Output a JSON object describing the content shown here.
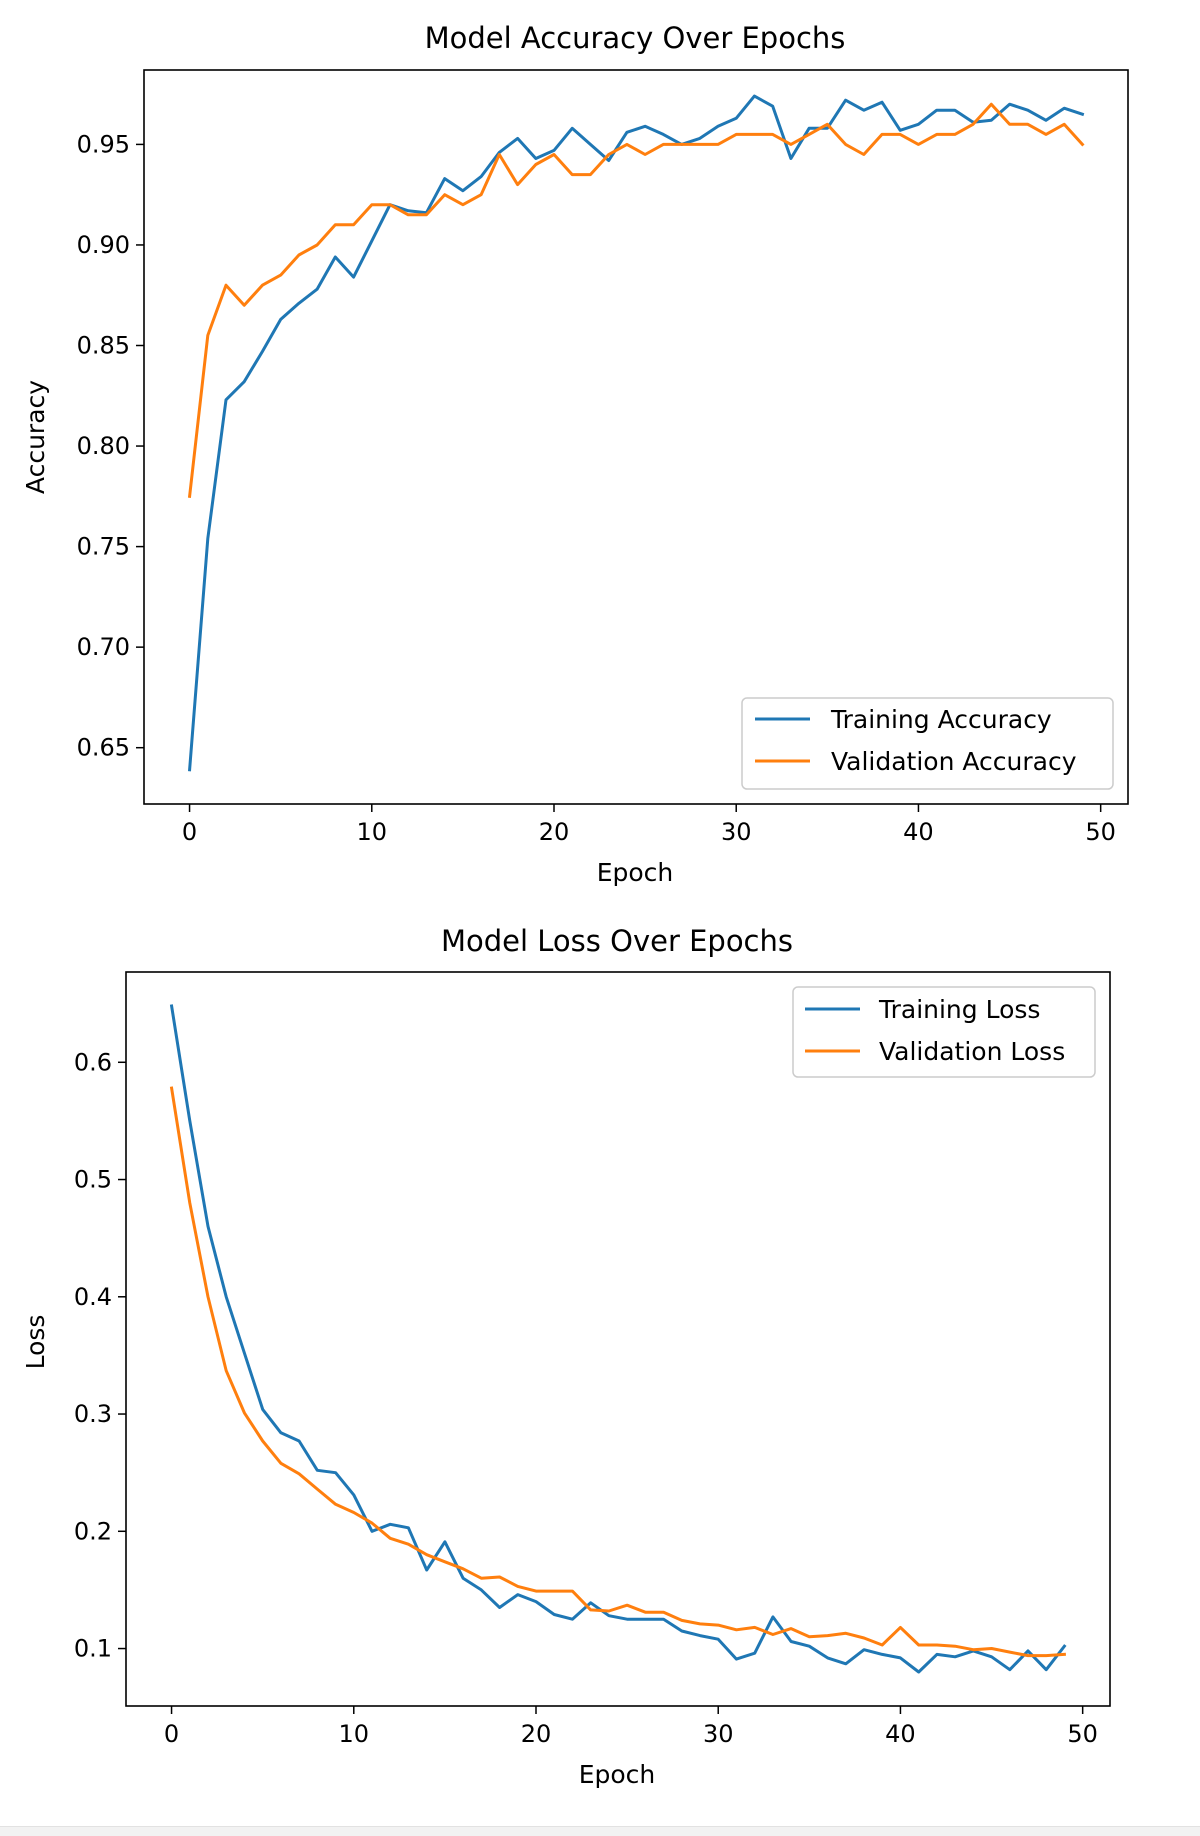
{
  "colors": {
    "training": "#1f77b4",
    "validation": "#ff7f0e"
  },
  "chart_data": [
    {
      "type": "line",
      "title": "Model Accuracy Over Epochs",
      "xlabel": "Epoch",
      "ylabel": "Accuracy",
      "xlim": [
        -2.5,
        51.5
      ],
      "ylim": [
        0.622,
        0.987
      ],
      "xticks": [
        0,
        10,
        20,
        30,
        40,
        50
      ],
      "xtick_labels": [
        "0",
        "10",
        "20",
        "30",
        "40",
        "50"
      ],
      "yticks": [
        0.65,
        0.7,
        0.75,
        0.8,
        0.85,
        0.9,
        0.95
      ],
      "ytick_labels": [
        "0.65",
        "0.70",
        "0.75",
        "0.80",
        "0.85",
        "0.90",
        "0.95"
      ],
      "legend_position": "lower-right",
      "grid": false,
      "series": [
        {
          "name": "Training Accuracy",
          "values": [
            0.639,
            0.754,
            0.823,
            0.832,
            0.847,
            0.863,
            0.871,
            0.878,
            0.894,
            0.884,
            0.902,
            0.92,
            0.917,
            0.916,
            0.933,
            0.927,
            0.934,
            0.946,
            0.953,
            0.943,
            0.947,
            0.958,
            0.95,
            0.942,
            0.956,
            0.959,
            0.955,
            0.95,
            0.953,
            0.959,
            0.963,
            0.974,
            0.969,
            0.943,
            0.958,
            0.958,
            0.972,
            0.967,
            0.971,
            0.957,
            0.96,
            0.967,
            0.967,
            0.961,
            0.962,
            0.97,
            0.967,
            0.962,
            0.968,
            0.965
          ]
        },
        {
          "name": "Validation Accuracy",
          "values": [
            0.775,
            0.855,
            0.88,
            0.87,
            0.88,
            0.885,
            0.895,
            0.9,
            0.91,
            0.91,
            0.92,
            0.92,
            0.915,
            0.915,
            0.925,
            0.92,
            0.925,
            0.945,
            0.93,
            0.94,
            0.945,
            0.935,
            0.935,
            0.945,
            0.95,
            0.945,
            0.95,
            0.95,
            0.95,
            0.95,
            0.955,
            0.955,
            0.955,
            0.95,
            0.955,
            0.96,
            0.95,
            0.945,
            0.955,
            0.955,
            0.95,
            0.955,
            0.955,
            0.96,
            0.97,
            0.96,
            0.96,
            0.955,
            0.96,
            0.95
          ]
        }
      ]
    },
    {
      "type": "line",
      "title": "Model Loss Over Epochs",
      "xlabel": "Epoch",
      "ylabel": "Loss",
      "xlim": [
        -2.5,
        51.5
      ],
      "ylim": [
        0.051,
        0.677
      ],
      "xticks": [
        0,
        10,
        20,
        30,
        40,
        50
      ],
      "xtick_labels": [
        "0",
        "10",
        "20",
        "30",
        "40",
        "50"
      ],
      "yticks": [
        0.1,
        0.2,
        0.3,
        0.4,
        0.5,
        0.6
      ],
      "ytick_labels": [
        "0.1",
        "0.2",
        "0.3",
        "0.4",
        "0.5",
        "0.6"
      ],
      "legend_position": "upper-right",
      "grid": false,
      "series": [
        {
          "name": "Training Loss",
          "values": [
            0.648,
            0.55,
            0.46,
            0.4,
            0.352,
            0.304,
            0.284,
            0.277,
            0.252,
            0.25,
            0.231,
            0.2,
            0.206,
            0.203,
            0.167,
            0.191,
            0.16,
            0.15,
            0.135,
            0.146,
            0.14,
            0.129,
            0.125,
            0.139,
            0.128,
            0.125,
            0.125,
            0.125,
            0.115,
            0.111,
            0.108,
            0.091,
            0.096,
            0.127,
            0.106,
            0.102,
            0.092,
            0.087,
            0.099,
            0.095,
            0.092,
            0.08,
            0.095,
            0.093,
            0.098,
            0.093,
            0.082,
            0.098,
            0.082,
            0.102
          ]
        },
        {
          "name": "Validation Loss",
          "values": [
            0.578,
            0.48,
            0.4,
            0.337,
            0.301,
            0.277,
            0.258,
            0.249,
            0.236,
            0.223,
            0.216,
            0.207,
            0.194,
            0.189,
            0.18,
            0.174,
            0.168,
            0.16,
            0.161,
            0.153,
            0.149,
            0.149,
            0.149,
            0.133,
            0.132,
            0.137,
            0.131,
            0.131,
            0.124,
            0.121,
            0.12,
            0.116,
            0.118,
            0.112,
            0.117,
            0.11,
            0.111,
            0.113,
            0.109,
            0.103,
            0.118,
            0.103,
            0.103,
            0.102,
            0.099,
            0.1,
            0.097,
            0.094,
            0.094,
            0.095
          ]
        }
      ]
    }
  ]
}
